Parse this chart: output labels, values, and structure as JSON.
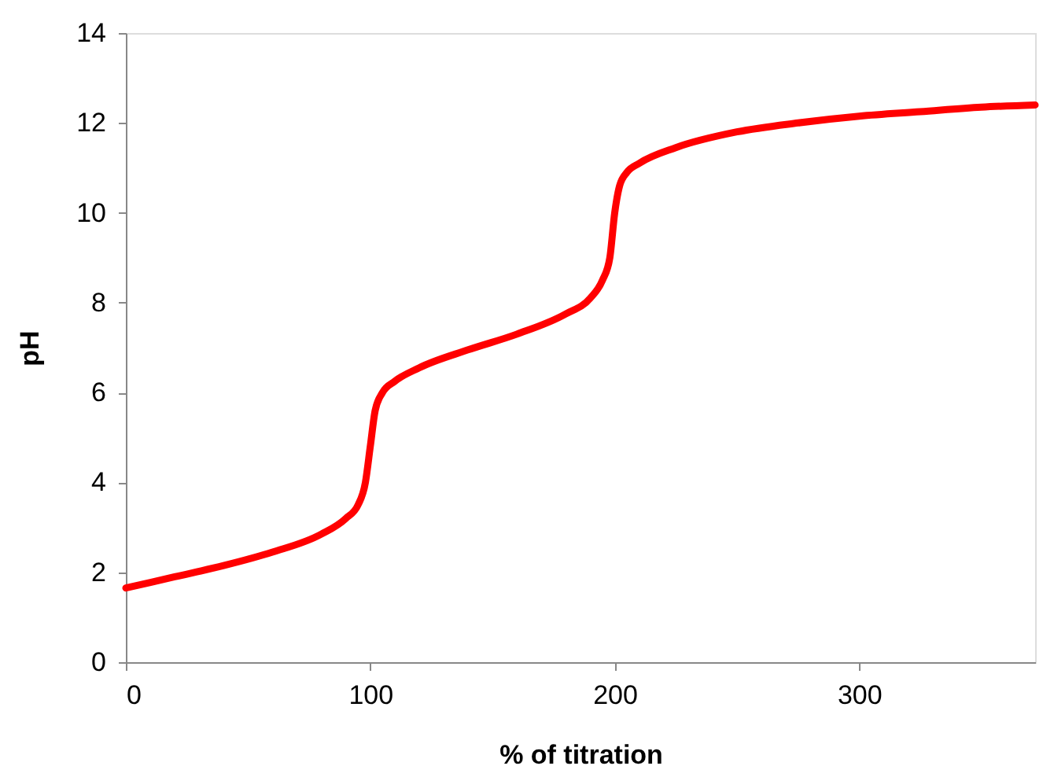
{
  "chart_data": {
    "type": "line",
    "xlabel": "% of titration",
    "ylabel": "pH",
    "x": [
      0,
      20,
      40,
      60,
      80,
      90,
      95,
      98,
      100,
      102,
      105,
      110,
      120,
      140,
      160,
      180,
      190,
      195,
      198,
      200,
      202,
      205,
      210,
      225,
      250,
      275,
      300,
      325,
      350,
      372
    ],
    "series": [
      {
        "color": "#ff0000",
        "values": [
          1.65,
          1.9,
          2.15,
          2.45,
          2.85,
          3.2,
          3.5,
          4.0,
          4.8,
          5.6,
          6.0,
          6.25,
          6.55,
          6.95,
          7.3,
          7.75,
          8.1,
          8.5,
          9.0,
          10.0,
          10.6,
          10.9,
          11.1,
          11.45,
          11.8,
          12.0,
          12.15,
          12.25,
          12.35,
          12.4
        ]
      }
    ],
    "xlim": [
      0,
      372
    ],
    "xticks": [
      0,
      100,
      200,
      300
    ],
    "ylim": [
      0,
      14
    ],
    "yticks": [
      0,
      2,
      4,
      6,
      8,
      10,
      12,
      14
    ],
    "grid": false,
    "marker": "none",
    "line_style": "solid"
  }
}
